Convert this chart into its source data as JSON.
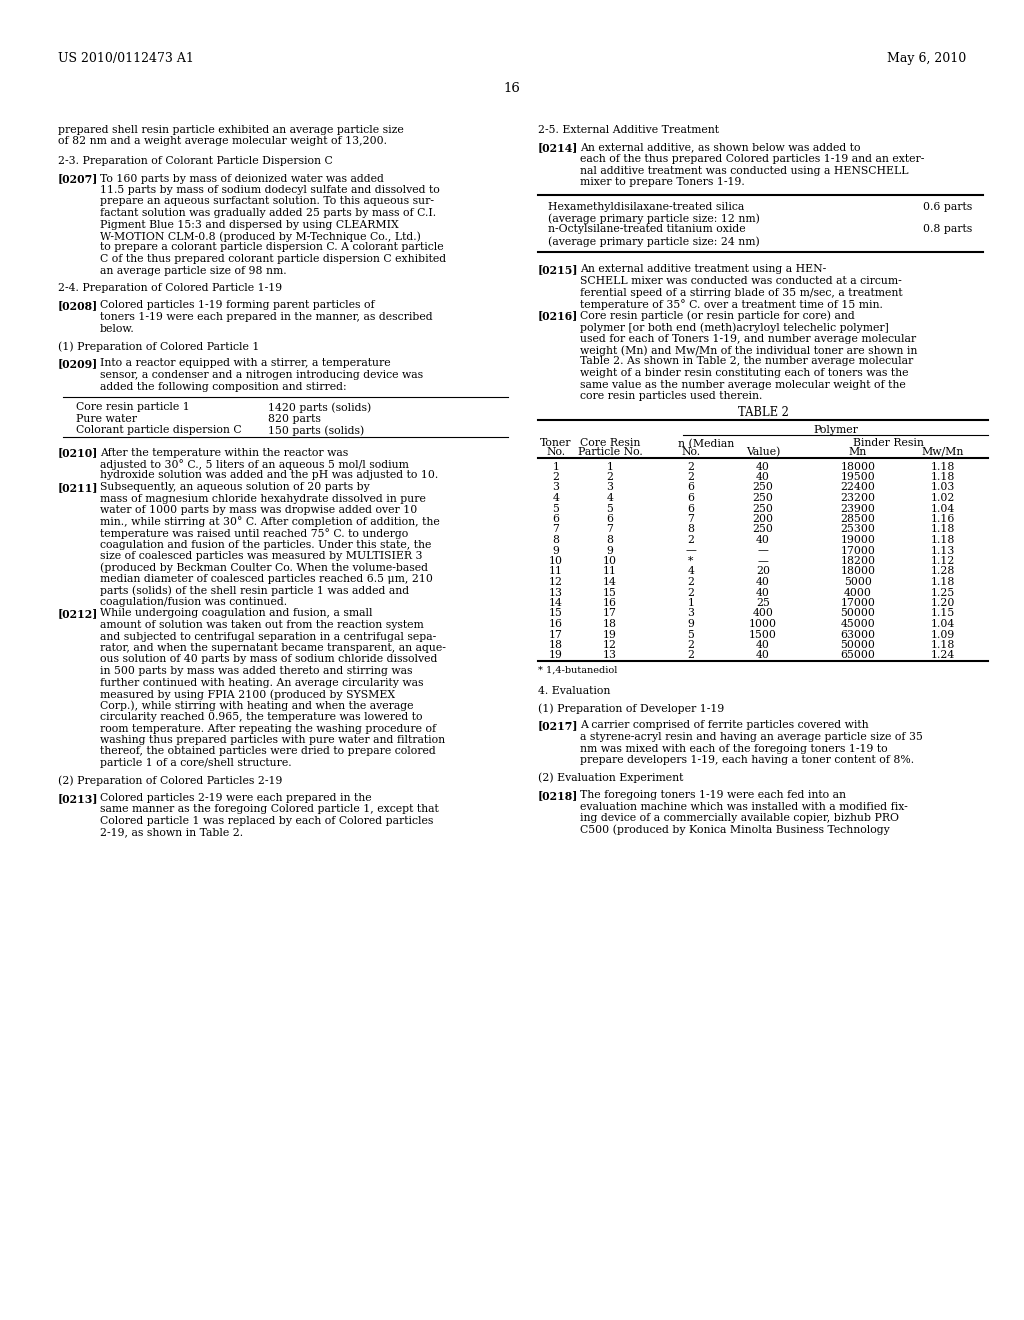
{
  "bg_color": "#ffffff",
  "header_left": "US 2010/0112473 A1",
  "header_right": "May 6, 2010",
  "page_number": "16",
  "left_col_items": [
    {
      "type": "plain",
      "lines": [
        "prepared shell resin particle exhibited an average particle size",
        "of 82 nm and a weight average molecular weight of 13,200."
      ]
    },
    {
      "type": "gap",
      "size": 8
    },
    {
      "type": "plain",
      "lines": [
        "2-3. Preparation of Colorant Particle Dispersion C"
      ]
    },
    {
      "type": "gap",
      "size": 6
    },
    {
      "type": "para",
      "number": "[0207]",
      "lines": [
        "To 160 parts by mass of deionized water was added",
        "11.5 parts by mass of sodium dodecyl sulfate and dissolved to",
        "prepare an aqueous surfactant solution. To this aqueous sur-",
        "factant solution was gradually added 25 parts by mass of C.I.",
        "Pigment Blue 15:3 and dispersed by using CLEARMIX",
        "W-MOTION CLM-0.8 (produced by M-Technique Co., Ltd.)",
        "to prepare a colorant particle dispersion C. A colorant particle",
        "C of the thus prepared colorant particle dispersion C exhibited",
        "an average particle size of 98 nm."
      ]
    },
    {
      "type": "gap",
      "size": 6
    },
    {
      "type": "plain",
      "lines": [
        "2-4. Preparation of Colored Particle 1-19"
      ]
    },
    {
      "type": "gap",
      "size": 6
    },
    {
      "type": "para",
      "number": "[0208]",
      "lines": [
        "Colored particles 1-19 forming parent particles of",
        "toners 1-19 were each prepared in the manner, as described",
        "below."
      ]
    },
    {
      "type": "gap",
      "size": 6
    },
    {
      "type": "plain",
      "lines": [
        "(1) Preparation of Colored Particle 1"
      ]
    },
    {
      "type": "gap",
      "size": 6
    },
    {
      "type": "para",
      "number": "[0209]",
      "lines": [
        "Into a reactor equipped with a stirrer, a temperature",
        "sensor, a condenser and a nitrogen introducing device was",
        "added the following composition and stirred:"
      ]
    },
    {
      "type": "gap",
      "size": 4
    },
    {
      "type": "table_small",
      "rows": [
        [
          "Core resin particle 1",
          "1420 parts (solids)"
        ],
        [
          "Pure water",
          "820 parts"
        ],
        [
          "Colorant particle dispersion C",
          "150 parts (solids)"
        ]
      ]
    },
    {
      "type": "gap",
      "size": 6
    },
    {
      "type": "para",
      "number": "[0210]",
      "lines": [
        "After the temperature within the reactor was",
        "adjusted to 30° C., 5 liters of an aqueous 5 mol/l sodium",
        "hydroxide solution was added and the pH was adjusted to 10."
      ]
    },
    {
      "type": "para",
      "number": "[0211]",
      "lines": [
        "Subsequently, an aqueous solution of 20 parts by",
        "mass of magnesium chloride hexahydrate dissolved in pure",
        "water of 1000 parts by mass was dropwise added over 10",
        "min., while stirring at 30° C. After completion of addition, the",
        "temperature was raised until reached 75° C. to undergo",
        "coagulation and fusion of the particles. Under this state, the",
        "size of coalesced particles was measured by MULTISIER 3",
        "(produced by Beckman Coulter Co. When the volume-based",
        "median diameter of coalesced particles reached 6.5 μm, 210",
        "parts (solids) of the shell resin particle 1 was added and",
        "coagulation/fusion was continued."
      ]
    },
    {
      "type": "para",
      "number": "[0212]",
      "lines": [
        "While undergoing coagulation and fusion, a small",
        "amount of solution was taken out from the reaction system",
        "and subjected to centrifugal separation in a centrifugal sepa-",
        "rator, and when the supernatant became transparent, an aque-",
        "ous solution of 40 parts by mass of sodium chloride dissolved",
        "in 500 parts by mass was added thereto and stirring was",
        "further continued with heating. An average circularity was",
        "measured by using FPIA 2100 (produced by SYSMEX",
        "Corp.), while stirring with heating and when the average",
        "circularity reached 0.965, the temperature was lowered to",
        "room temperature. After repeating the washing procedure of",
        "washing thus prepared particles with pure water and filtration",
        "thereof, the obtained particles were dried to prepare colored",
        "particle 1 of a core/shell structure."
      ]
    },
    {
      "type": "gap",
      "size": 6
    },
    {
      "type": "plain",
      "lines": [
        "(2) Preparation of Colored Particles 2-19"
      ]
    },
    {
      "type": "gap",
      "size": 6
    },
    {
      "type": "para",
      "number": "[0213]",
      "lines": [
        "Colored particles 2-19 were each prepared in the",
        "same manner as the foregoing Colored particle 1, except that",
        "Colored particle 1 was replaced by each of Colored particles",
        "2-19, as shown in Table 2."
      ]
    }
  ],
  "right_col_items": [
    {
      "type": "plain",
      "lines": [
        "2-5. External Additive Treatment"
      ]
    },
    {
      "type": "gap",
      "size": 6
    },
    {
      "type": "para",
      "number": "[0214]",
      "lines": [
        "An external additive, as shown below was added to",
        "each of the thus prepared Colored particles 1-19 and an exter-",
        "nal additive treatment was conducted using a HENSCHELL",
        "mixer to prepare Toners 1-19."
      ]
    },
    {
      "type": "gap",
      "size": 6
    },
    {
      "type": "table_additive",
      "rows": [
        [
          "Hexamethyldisilaxane-treated silica",
          "0.6 parts",
          "(average primary particle size: 12 nm)",
          "",
          "n-Octylsilane-treated titanium oxide",
          "0.8 parts",
          "(average primary particle size: 24 nm)",
          ""
        ]
      ]
    },
    {
      "type": "gap",
      "size": 8
    },
    {
      "type": "para",
      "number": "[0215]",
      "lines": [
        "An external additive treatment using a HEN-",
        "SCHELL mixer was conducted was conducted at a circum-",
        "ferential speed of a stirring blade of 35 m/sec, a treatment",
        "temperature of 35° C. over a treatment time of 15 min."
      ]
    },
    {
      "type": "para",
      "number": "[0216]",
      "lines": [
        "Core resin particle (or resin particle for core) and",
        "polymer [or both end (meth)acryloyl telechelic polymer]",
        "used for each of Toners 1-19, and number average molecular",
        "weight (Mn) and Mw/Mn of the individual toner are shown in",
        "Table 2. As shown in Table 2, the number average molecular",
        "weight of a binder resin constituting each of toners was the",
        "same value as the number average molecular weight of the",
        "core resin particles used therein."
      ]
    },
    {
      "type": "gap",
      "size": 4
    },
    {
      "type": "table2",
      "title": "TABLE 2",
      "data": [
        [
          "1",
          "1",
          "2",
          "40",
          "18000",
          "1.18"
        ],
        [
          "2",
          "2",
          "2",
          "40",
          "19500",
          "1.18"
        ],
        [
          "3",
          "3",
          "6",
          "250",
          "22400",
          "1.03"
        ],
        [
          "4",
          "4",
          "6",
          "250",
          "23200",
          "1.02"
        ],
        [
          "5",
          "5",
          "6",
          "250",
          "23900",
          "1.04"
        ],
        [
          "6",
          "6",
          "7",
          "200",
          "28500",
          "1.16"
        ],
        [
          "7",
          "7",
          "8",
          "250",
          "25300",
          "1.18"
        ],
        [
          "8",
          "8",
          "2",
          "40",
          "19000",
          "1.18"
        ],
        [
          "9",
          "9",
          "—",
          "—",
          "17000",
          "1.13"
        ],
        [
          "10",
          "10",
          "*",
          "—",
          "18200",
          "1.12"
        ],
        [
          "11",
          "11",
          "4",
          "20",
          "18000",
          "1.28"
        ],
        [
          "12",
          "14",
          "2",
          "40",
          "5000",
          "1.18"
        ],
        [
          "13",
          "15",
          "2",
          "40",
          "4000",
          "1.25"
        ],
        [
          "14",
          "16",
          "1",
          "25",
          "17000",
          "1.20"
        ],
        [
          "15",
          "17",
          "3",
          "400",
          "50000",
          "1.15"
        ],
        [
          "16",
          "18",
          "9",
          "1000",
          "45000",
          "1.04"
        ],
        [
          "17",
          "19",
          "5",
          "1500",
          "63000",
          "1.09"
        ],
        [
          "18",
          "12",
          "2",
          "40",
          "50000",
          "1.18"
        ],
        [
          "19",
          "13",
          "2",
          "40",
          "65000",
          "1.24"
        ]
      ],
      "footnote": "* 1,4-butanediol"
    },
    {
      "type": "gap",
      "size": 8
    },
    {
      "type": "plain",
      "lines": [
        "4. Evaluation"
      ]
    },
    {
      "type": "gap",
      "size": 6
    },
    {
      "type": "plain",
      "lines": [
        "(1) Preparation of Developer 1-19"
      ]
    },
    {
      "type": "gap",
      "size": 6
    },
    {
      "type": "para",
      "number": "[0217]",
      "lines": [
        "A carrier comprised of ferrite particles covered with",
        "a styrene-acryl resin and having an average particle size of 35",
        "nm was mixed with each of the foregoing toners 1-19 to",
        "prepare developers 1-19, each having a toner content of 8%."
      ]
    },
    {
      "type": "gap",
      "size": 6
    },
    {
      "type": "plain",
      "lines": [
        "(2) Evaluation Experiment"
      ]
    },
    {
      "type": "gap",
      "size": 6
    },
    {
      "type": "para",
      "number": "[0218]",
      "lines": [
        "The foregoing toners 1-19 were each fed into an",
        "evaluation machine which was installed with a modified fix-",
        "ing device of a commercially available copier, bizhub PRO",
        "C500 (produced by Konica Minolta Business Technology"
      ]
    }
  ]
}
